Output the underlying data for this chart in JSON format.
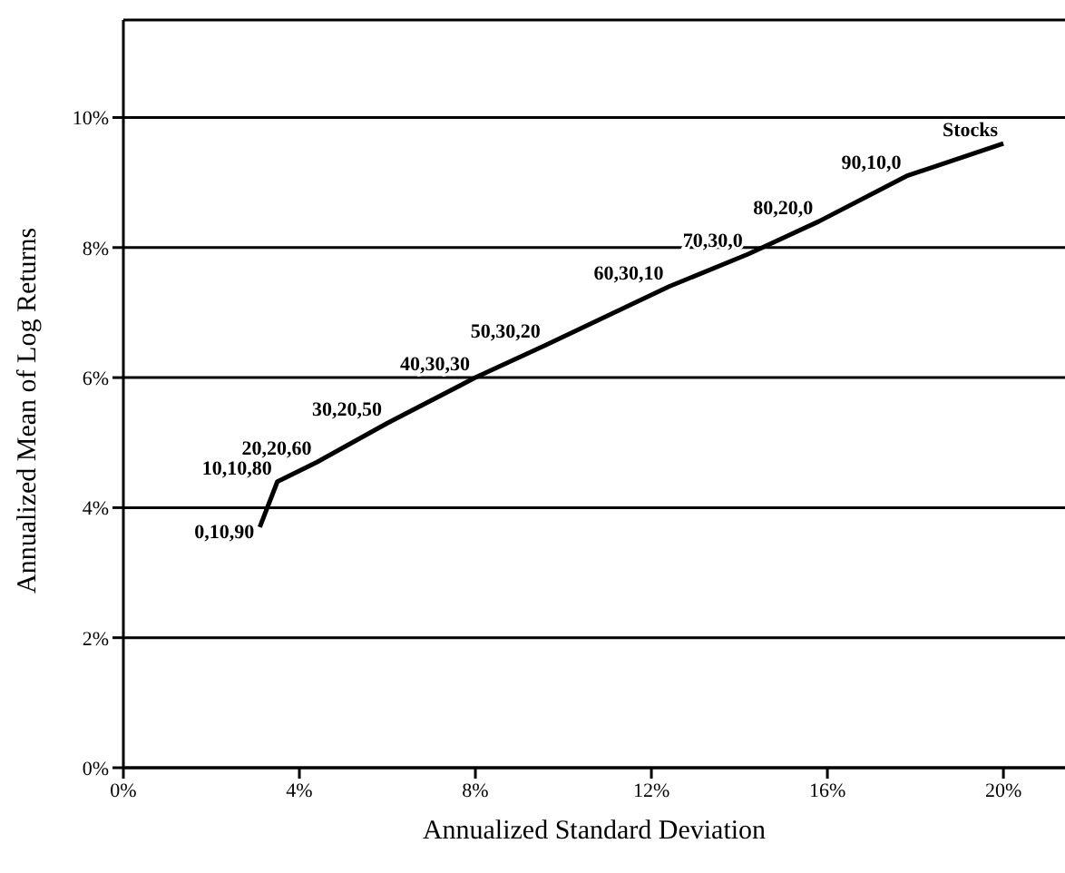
{
  "chart_data": {
    "type": "line",
    "xlabel": "Annualized Standard Deviation",
    "ylabel": "Annualized Mean of Log Returns",
    "x": [
      3.1,
      3.5,
      4.4,
      6.0,
      8.0,
      9.6,
      12.4,
      14.2,
      15.8,
      17.8,
      20.0
    ],
    "series": [
      {
        "color": "#000000",
        "values": [
          3.7,
          4.4,
          4.7,
          5.3,
          6.0,
          6.5,
          7.4,
          7.9,
          8.4,
          9.1,
          9.6
        ]
      }
    ],
    "annotations": [
      {
        "text": "0,10,90",
        "x": 3.1,
        "y": 3.7
      },
      {
        "text": "10,10,80",
        "x": 3.5,
        "y": 4.4
      },
      {
        "text": "20,20,60",
        "x": 4.4,
        "y": 4.7
      },
      {
        "text": "30,20,50",
        "x": 6.0,
        "y": 5.3
      },
      {
        "text": "40,30,30",
        "x": 8.0,
        "y": 6.0
      },
      {
        "text": "50,30,20",
        "x": 9.6,
        "y": 6.5
      },
      {
        "text": "60,30,10",
        "x": 12.4,
        "y": 7.4
      },
      {
        "text": "70,30,0",
        "x": 14.2,
        "y": 7.9
      },
      {
        "text": "80,20,0",
        "x": 15.8,
        "y": 8.4
      },
      {
        "text": "90,10,0",
        "x": 17.8,
        "y": 9.1
      },
      {
        "text": "Stocks",
        "x": 20.0,
        "y": 9.6
      }
    ],
    "xlim": [
      0,
      21.4
    ],
    "ylim": [
      0,
      11.5
    ],
    "xticks": [
      {
        "value": 0,
        "label": "0%"
      },
      {
        "value": 4,
        "label": "4%"
      },
      {
        "value": 8,
        "label": "8%"
      },
      {
        "value": 12,
        "label": "12%"
      },
      {
        "value": 16,
        "label": "16%"
      },
      {
        "value": 20,
        "label": "20%"
      }
    ],
    "yticks": [
      {
        "value": 0,
        "label": "0%"
      },
      {
        "value": 2,
        "label": "2%"
      },
      {
        "value": 4,
        "label": "4%"
      },
      {
        "value": 6,
        "label": "6%"
      },
      {
        "value": 8,
        "label": "8%"
      },
      {
        "value": 10,
        "label": "10%"
      }
    ],
    "grid": "y",
    "marker": "none",
    "line_style": "solid",
    "legend": false
  }
}
